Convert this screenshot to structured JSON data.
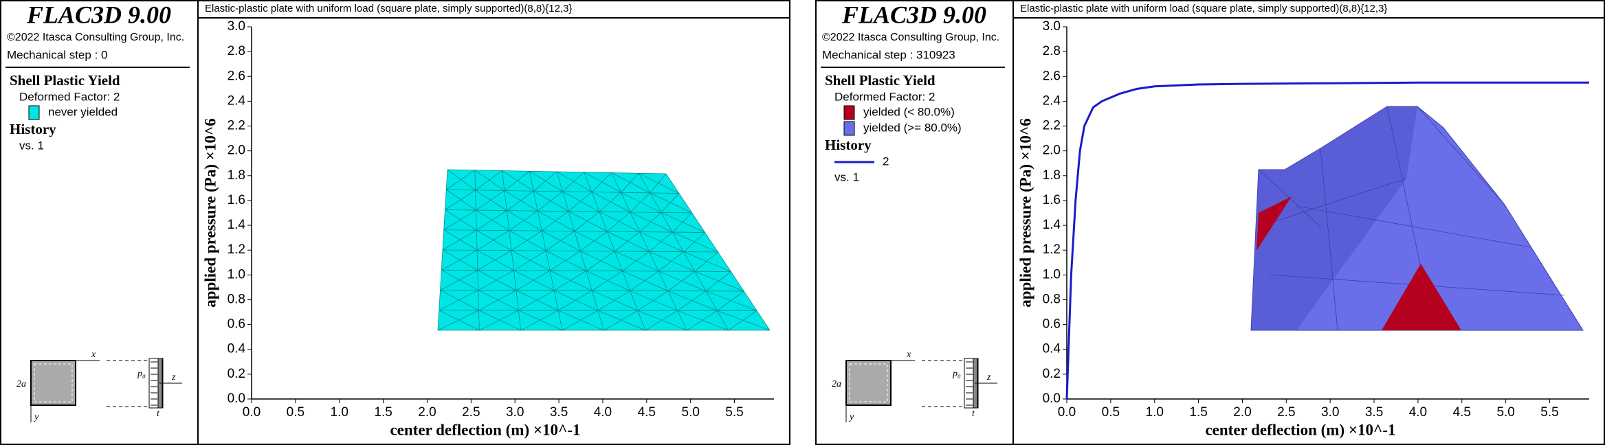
{
  "panels": [
    {
      "header": {
        "title": "FLAC3D 9.00",
        "copyright": "©2022 Itasca Consulting Group, Inc.",
        "step": "Mechanical step : 0"
      },
      "legend": {
        "title": "Shell Plastic Yield",
        "factor": "Deformed Factor: 2",
        "items": [
          {
            "label": "never yielded",
            "color": "#00e5e5"
          }
        ]
      },
      "history": {
        "title": "History",
        "vs": "vs. 1"
      }
    },
    {
      "header": {
        "title": "FLAC3D 9.00",
        "copyright": "©2022 Itasca Consulting Group, Inc.",
        "step": "Mechanical step : 310923"
      },
      "legend": {
        "title": "Shell Plastic Yield",
        "factor": "Deformed Factor: 2",
        "items": [
          {
            "label": "yielded (< 80.0%)",
            "color": "#b5001f"
          },
          {
            "label": "yielded (>= 80.0%)",
            "color": "#6a6ee8"
          }
        ]
      },
      "history": {
        "title": "History",
        "vs": "vs. 1"
      }
    }
  ],
  "diagram": {
    "x": "x",
    "y": "y",
    "size": "2a",
    "load": "p₀",
    "z": "z",
    "t": "t"
  },
  "chart_data": [
    {
      "type": "line",
      "title": "Elastic-plastic plate with uniform load (square plate, simply supported)(8,8){12,3}",
      "x_label": "center deflection (m) ×10^-1",
      "y_label": "applied pressure (Pa) ×10^6",
      "xlim": [
        0,
        5.95
      ],
      "ylim": [
        0,
        3
      ],
      "xticks": [
        {
          "value": 0,
          "label": "0.0"
        },
        0.5,
        {
          "value": 1,
          "label": "1.0"
        },
        1.5,
        {
          "value": 2,
          "label": "2.0"
        },
        2.5,
        {
          "value": 3,
          "label": "3.0"
        },
        3.5,
        {
          "value": 4,
          "label": "4.0"
        },
        4.5,
        {
          "value": 5,
          "label": "5.0"
        },
        5.5
      ],
      "yticks": [
        {
          "value": 0,
          "label": "0.0"
        },
        0.2,
        0.4,
        0.6,
        0.8,
        {
          "value": 1,
          "label": "1.0"
        },
        1.2,
        1.4,
        1.6,
        1.8,
        {
          "value": 2,
          "label": "2.0"
        },
        2.2,
        2.4,
        2.6,
        2.8,
        {
          "value": 3,
          "label": "3.0"
        }
      ]
    },
    {
      "type": "line",
      "title": "Elastic-plastic plate with uniform load (square plate, simply supported)(8,8){12,3}",
      "x_label": "center deflection (m) ×10^-1",
      "y_label": "applied pressure (Pa) ×10^6",
      "xlim": [
        0,
        5.95
      ],
      "ylim": [
        0,
        3
      ],
      "xticks": [
        {
          "value": 0,
          "label": "0.0"
        },
        0.5,
        {
          "value": 1,
          "label": "1.0"
        },
        1.5,
        {
          "value": 2,
          "label": "2.0"
        },
        2.5,
        {
          "value": 3,
          "label": "3.0"
        },
        3.5,
        {
          "value": 4,
          "label": "4.0"
        },
        4.5,
        {
          "value": 5,
          "label": "5.0"
        },
        5.5
      ],
      "yticks": [
        {
          "value": 0,
          "label": "0.0"
        },
        0.2,
        0.4,
        0.6,
        0.8,
        {
          "value": 1,
          "label": "1.0"
        },
        1.2,
        1.4,
        1.6,
        1.8,
        {
          "value": 2,
          "label": "2.0"
        },
        2.2,
        2.4,
        2.6,
        2.8,
        {
          "value": 3,
          "label": "3.0"
        }
      ],
      "x": [
        0,
        0.02,
        0.05,
        0.1,
        0.15,
        0.2,
        0.3,
        0.4,
        0.6,
        0.8,
        1.0,
        1.5,
        2,
        3,
        4,
        5,
        5.95
      ],
      "series": [
        {
          "name": "2",
          "color": "#1a1acc",
          "values": [
            0,
            0.4,
            1.0,
            1.6,
            2.0,
            2.2,
            2.35,
            2.4,
            2.46,
            2.5,
            2.52,
            2.535,
            2.54,
            2.545,
            2.55,
            2.55,
            2.55
          ]
        }
      ]
    }
  ]
}
